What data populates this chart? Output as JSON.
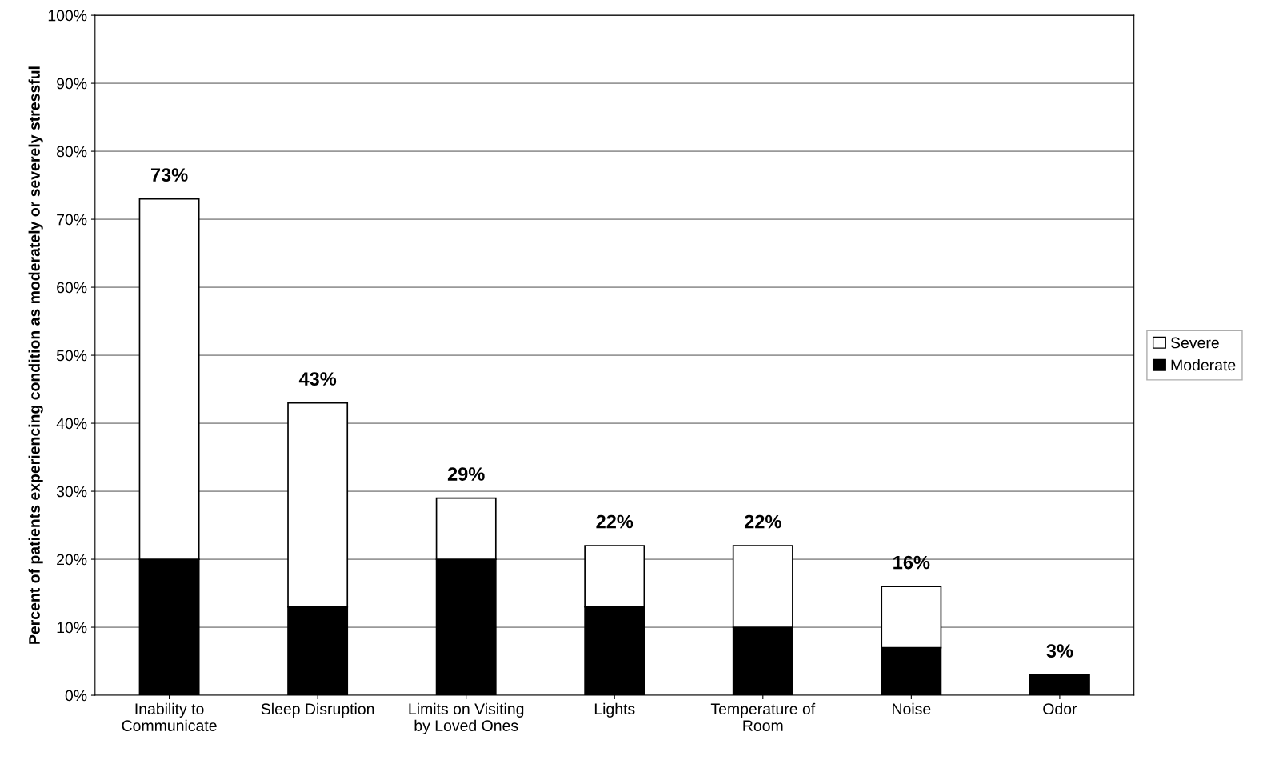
{
  "chart_data": {
    "type": "bar",
    "stacked": true,
    "ylabel": "Percent of patients experiencing condition as moderately or severely stressful",
    "categories": [
      "Inability to\nCommunicate",
      "Sleep Disruption",
      "Limits on Visiting\nby Loved Ones",
      "Lights",
      "Temperature of\nRoom",
      "Noise",
      "Odor"
    ],
    "series": [
      {
        "name": "Moderate",
        "color": "#000000",
        "values": [
          20,
          13,
          20,
          13,
          10,
          7,
          3
        ]
      },
      {
        "name": "Severe",
        "color": "#ffffff",
        "values": [
          53,
          30,
          9,
          9,
          12,
          9,
          0
        ]
      }
    ],
    "totals": [
      "73%",
      "43%",
      "29%",
      "22%",
      "22%",
      "16%",
      "3%"
    ],
    "ylim": [
      0,
      100
    ],
    "yticks": [
      {
        "value": 0,
        "label": "0%"
      },
      {
        "value": 10,
        "label": "10%"
      },
      {
        "value": 20,
        "label": "20%"
      },
      {
        "value": 30,
        "label": "30%"
      },
      {
        "value": 40,
        "label": "40%"
      },
      {
        "value": 50,
        "label": "50%"
      },
      {
        "value": 60,
        "label": "60%"
      },
      {
        "value": 70,
        "label": "70%"
      },
      {
        "value": 80,
        "label": "80%"
      },
      {
        "value": 90,
        "label": "90%"
      },
      {
        "value": 100,
        "label": "100%"
      }
    ],
    "grid": "y",
    "legend": "right"
  }
}
